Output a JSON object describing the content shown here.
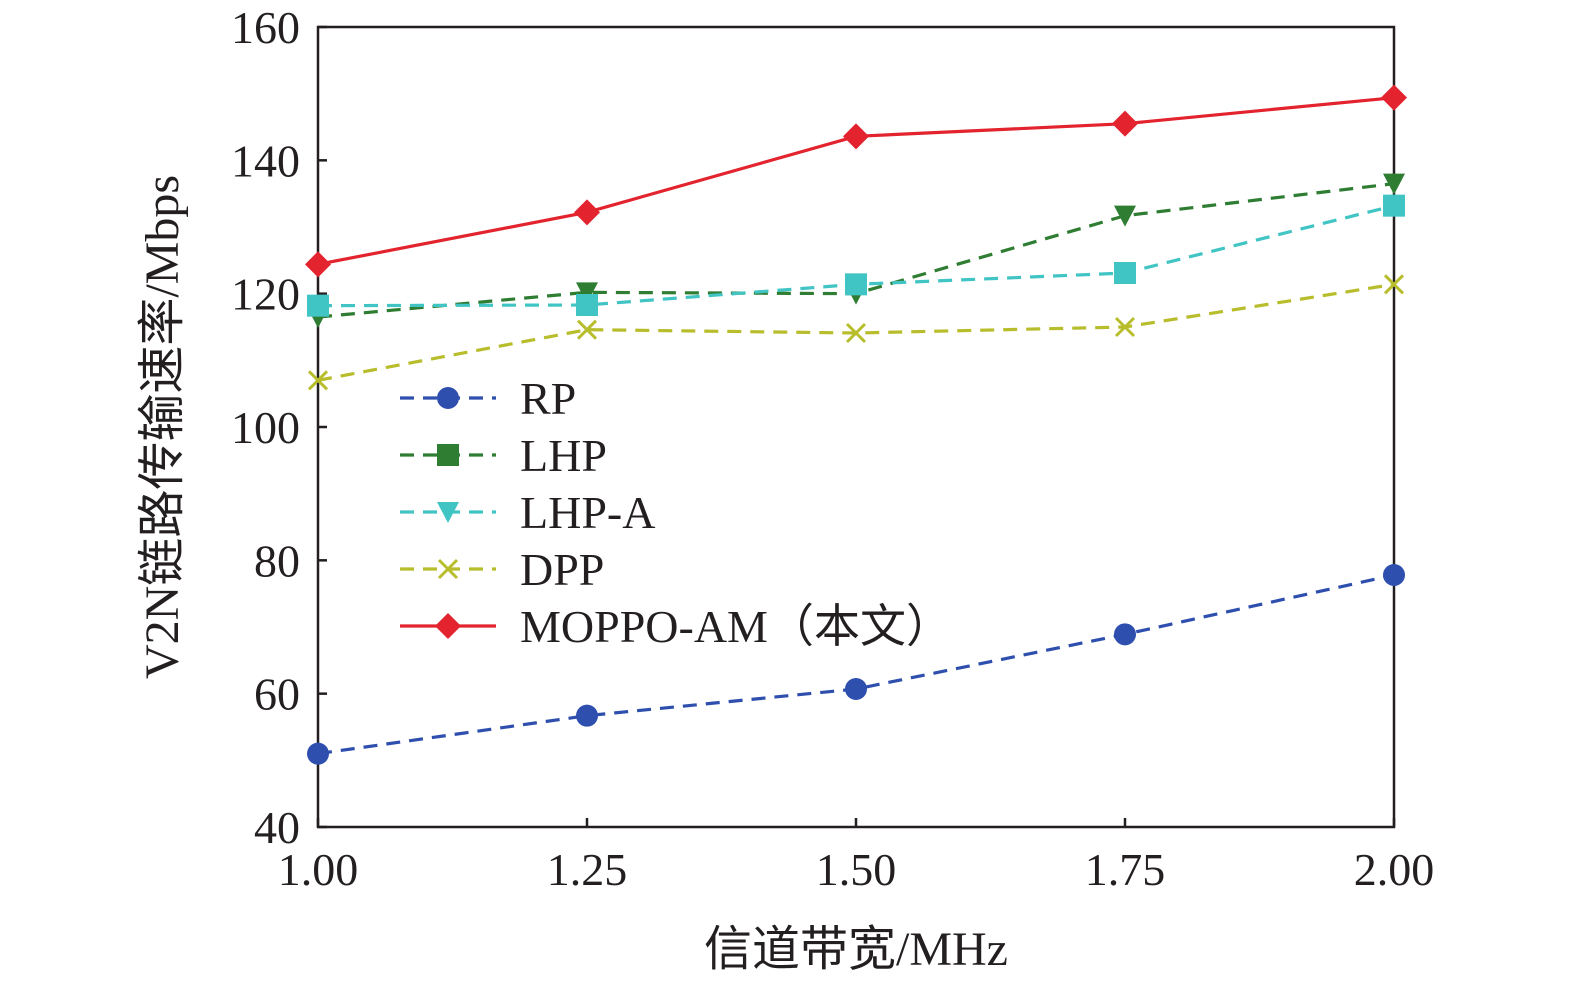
{
  "chart_data": {
    "type": "line",
    "title": "",
    "xlabel": "信道带宽/MHz",
    "ylabel": "V2N链路传输速率/Mbps",
    "x": [
      1.0,
      1.25,
      1.5,
      1.75,
      2.0
    ],
    "xticks": [
      "1.00",
      "1.25",
      "1.50",
      "1.75",
      "2.00"
    ],
    "yticks": [
      "40",
      "60",
      "80",
      "100",
      "120",
      "140",
      "160"
    ],
    "xlim": [
      1.0,
      2.0
    ],
    "ylim": [
      40,
      160
    ],
    "grid": false,
    "legend_position": "center-left",
    "series": [
      {
        "name": "RP",
        "values": [
          51,
          56.7,
          60.7,
          68.9,
          77.8
        ],
        "color": "#2e4fad",
        "dash": true,
        "marker": "circle"
      },
      {
        "name": "LHP",
        "values": [
          116.5,
          120.2,
          120.0,
          131.7,
          136.5
        ],
        "color": "#2e7d32",
        "dash": true,
        "marker": "square",
        "marker_override": "triangle-down"
      },
      {
        "name": "LHP-A",
        "values": [
          118.2,
          118.3,
          121.4,
          123.1,
          133.2
        ],
        "color": "#40c4c4",
        "dash": true,
        "marker": "triangle-down",
        "marker_override": "square"
      },
      {
        "name": "DPP",
        "values": [
          107.0,
          114.6,
          114.1,
          115.0,
          121.4
        ],
        "color": "#b8bd2c",
        "dash": true,
        "marker": "x"
      },
      {
        "name": "MOPPO-AM（本文）",
        "values": [
          124.4,
          132.2,
          143.6,
          145.5,
          149.4
        ],
        "color": "#e3232d",
        "dash": false,
        "marker": "diamond"
      }
    ]
  }
}
